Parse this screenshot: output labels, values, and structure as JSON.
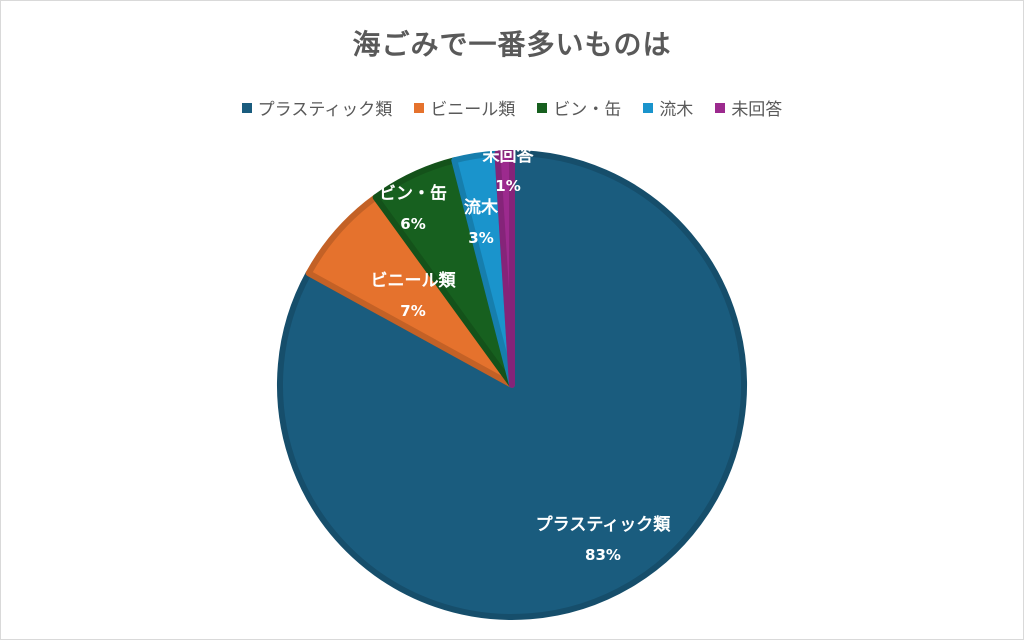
{
  "chart_data": {
    "type": "pie",
    "title": "海ごみで一番多いものは",
    "legend_position": "top",
    "categories": [
      "プラスティック類",
      "ビニール類",
      "ビン・缶",
      "流木",
      "未回答"
    ],
    "values": [
      83,
      7,
      6,
      3,
      1
    ],
    "labels": [
      "83%",
      "7%",
      "6%",
      "3%",
      "1%"
    ],
    "colors": [
      "#1a5c7e",
      "#e5722d",
      "#17601f",
      "#1a94cc",
      "#9c2a8e"
    ]
  }
}
